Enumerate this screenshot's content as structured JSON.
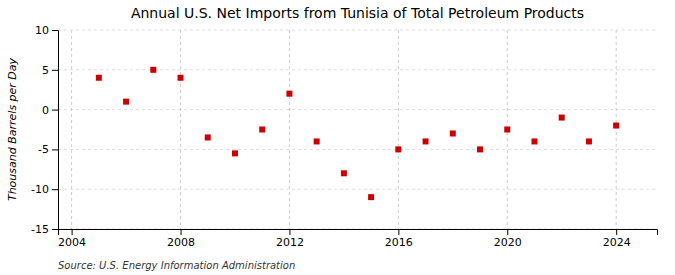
{
  "chart_data": {
    "type": "scatter",
    "title": "Annual U.S. Net Imports from Tunisia of Total Petroleum Products",
    "ylabel": "Thousand Barrels per Day",
    "source": "Source: U.S. Energy Information Administration",
    "x": [
      2005,
      2006,
      2007,
      2008,
      2009,
      2010,
      2011,
      2012,
      2013,
      2014,
      2015,
      2016,
      2017,
      2018,
      2019,
      2020,
      2021,
      2022,
      2023,
      2024
    ],
    "values": [
      4.0,
      1.0,
      5.0,
      4.0,
      -3.5,
      -5.5,
      -2.5,
      2.0,
      -4.0,
      -8.0,
      -11.0,
      -5.0,
      -4.0,
      -3.0,
      -5.0,
      -2.5,
      -4.0,
      -1.0,
      -4.0,
      -2.0
    ],
    "color": "#cc0000",
    "marker": "square",
    "xlim": [
      2003.5,
      2025.5
    ],
    "ylim": [
      -15,
      10
    ],
    "xticks": [
      2004,
      2008,
      2012,
      2016,
      2020,
      2024
    ],
    "yticks": [
      -15,
      -10,
      -5,
      0,
      5,
      10
    ],
    "grid": true
  }
}
